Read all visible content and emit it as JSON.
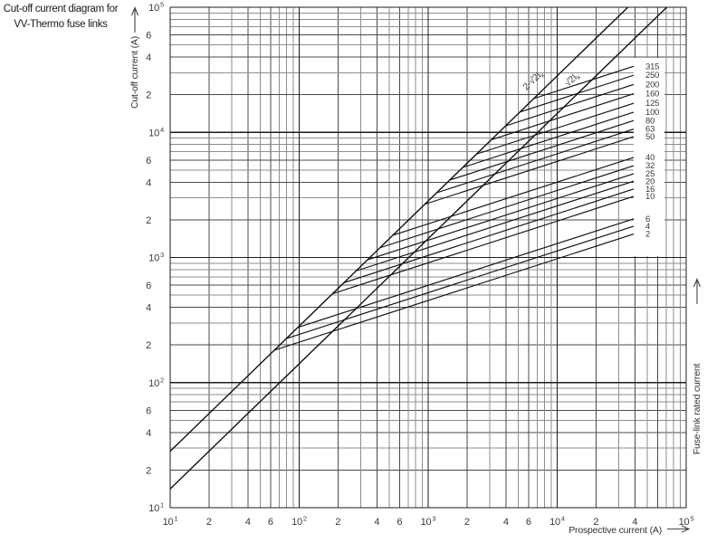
{
  "title": {
    "line1": "Cut-off current diagram for",
    "line2": "VV-Thermo fuse links"
  },
  "right_axis_label": "Fuse-link rated current",
  "chart_data": {
    "type": "line",
    "title": "Cut-off current diagram for VV-Thermo fuse links",
    "xlabel": "Prospective current (A)",
    "ylabel": "Cut-off current (A)",
    "xlim": [
      10,
      100000
    ],
    "ylim": [
      10,
      100000
    ],
    "log_scale": true,
    "grid": true,
    "axes": {
      "x": {
        "min_exp": 1,
        "max_exp": 5,
        "labeled_minors": [
          2,
          4,
          6
        ],
        "omit_labels": [
          {
            "exp": 4,
            "m": 6
          }
        ]
      },
      "y": {
        "min_exp": 1,
        "max_exp": 5,
        "labeled_minors": [
          2,
          4,
          6
        ],
        "omit_labels": []
      }
    },
    "x_tick_labels": [
      "10^1",
      "2",
      "4",
      "6",
      "10^2",
      "2",
      "4",
      "6",
      "10^3",
      "2",
      "4",
      "6",
      "10^4",
      "2",
      "4",
      "10^5"
    ],
    "y_tick_labels": [
      "10^1",
      "2",
      "4",
      "6",
      "10^2",
      "2",
      "4",
      "6",
      "10^3",
      "2",
      "4",
      "6",
      "10^4",
      "2",
      "4",
      "6",
      "10^5"
    ],
    "reference_lines": [
      {
        "label_main": "2·√2I",
        "label_sub": "k",
        "factor": 2.8284
      },
      {
        "label_main": "√2I",
        "label_sub": "k",
        "factor": 1.4142
      }
    ],
    "fuse_lines": {
      "slope_loglog": 0.33333,
      "branch_from_factor": 2.8284,
      "x_end": 40000,
      "series": [
        {
          "rating": "315",
          "cutoff_at_end": 34000
        },
        {
          "rating": "250",
          "cutoff_at_end": 28800
        },
        {
          "rating": "200",
          "cutoff_at_end": 24300
        },
        {
          "rating": "160",
          "cutoff_at_end": 20500
        },
        {
          "rating": "125",
          "cutoff_at_end": 17200
        },
        {
          "rating": "100",
          "cutoff_at_end": 14600
        },
        {
          "rating": "80",
          "cutoff_at_end": 12500
        },
        {
          "rating": "63",
          "cutoff_at_end": 10700
        },
        {
          "rating": "50",
          "cutoff_at_end": 9300
        },
        {
          "rating": "40",
          "cutoff_at_end": 6350
        },
        {
          "rating": "32",
          "cutoff_at_end": 5450
        },
        {
          "rating": "25",
          "cutoff_at_end": 4700
        },
        {
          "rating": "20",
          "cutoff_at_end": 4100
        },
        {
          "rating": "16",
          "cutoff_at_end": 3550
        },
        {
          "rating": "10",
          "cutoff_at_end": 3100
        },
        {
          "rating": "6",
          "cutoff_at_end": 2050
        },
        {
          "rating": "4",
          "cutoff_at_end": 1790
        },
        {
          "rating": "2",
          "cutoff_at_end": 1550
        }
      ]
    },
    "colors": {
      "major_grid": "#1c1c1c",
      "labeled_minor_grid": "#4a4a4a",
      "minor_grid": "#8e8e8e",
      "curve": "#111111",
      "tick_text": "#3a3a3a"
    }
  }
}
